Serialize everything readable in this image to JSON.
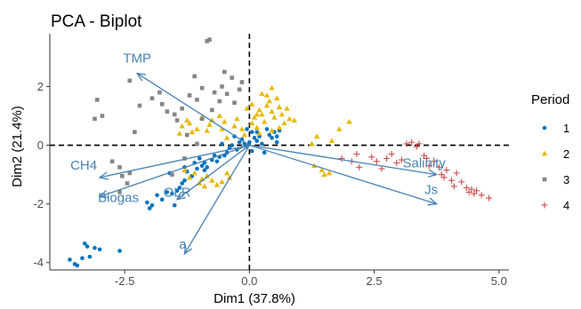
{
  "chart_data": {
    "type": "scatter",
    "title": "PCA - Biplot",
    "xlabel": "Dim1 (37.8%)",
    "ylabel": "Dim2 (21.4%)",
    "xlim": [
      -4.0,
      5.2
    ],
    "ylim": [
      -4.25,
      3.8
    ],
    "xticks": [
      -2.5,
      0.0,
      2.5,
      5.0
    ],
    "xtick_labels": [
      "-2.5",
      "0.0",
      "2.5",
      "5.0"
    ],
    "yticks": [
      -4,
      -2,
      0,
      2
    ],
    "ytick_labels": [
      "-4",
      "-2",
      "0",
      "2"
    ],
    "grid": false,
    "reference_lines": {
      "x": 0,
      "y": 0,
      "style": "dashed"
    },
    "legend": {
      "title": "Period",
      "position": "right"
    },
    "groups": [
      {
        "label": "1",
        "color": "#0072bd",
        "marker": "circle",
        "points": [
          [
            -3.6,
            -3.9
          ],
          [
            -3.5,
            -4.05
          ],
          [
            -3.45,
            -4.1
          ],
          [
            -3.35,
            -3.85
          ],
          [
            -3.25,
            -3.45
          ],
          [
            -3.1,
            -3.5
          ],
          [
            -3.2,
            -3.8
          ],
          [
            -3.0,
            -3.55
          ],
          [
            -2.6,
            -3.6
          ],
          [
            -3.3,
            -3.35
          ],
          [
            -2.05,
            -1.95
          ],
          [
            -1.95,
            -2.05
          ],
          [
            -1.85,
            -1.7
          ],
          [
            -1.75,
            -1.85
          ],
          [
            -1.65,
            -1.6
          ],
          [
            -1.55,
            -1.65
          ],
          [
            -1.45,
            -1.55
          ],
          [
            -1.4,
            -1.45
          ],
          [
            -1.35,
            -1.3
          ],
          [
            -1.3,
            -1.2
          ],
          [
            -1.25,
            -0.9
          ],
          [
            -1.15,
            -1.05
          ],
          [
            -1.05,
            -0.8
          ],
          [
            -0.95,
            -0.7
          ],
          [
            -0.9,
            -0.6
          ],
          [
            -0.85,
            -0.75
          ],
          [
            -0.75,
            -0.5
          ],
          [
            -0.65,
            -0.55
          ],
          [
            -0.6,
            -0.4
          ],
          [
            -0.5,
            -0.35
          ],
          [
            -0.45,
            -0.25
          ],
          [
            -0.4,
            -0.1
          ],
          [
            -0.35,
            0.0
          ],
          [
            -0.25,
            -0.15
          ],
          [
            -0.2,
            0.1
          ],
          [
            -0.15,
            0.2
          ],
          [
            -0.1,
            0.05
          ],
          [
            -0.05,
            -0.05
          ],
          [
            0.0,
            0.1
          ],
          [
            0.05,
            -0.2
          ],
          [
            0.1,
            0.25
          ],
          [
            0.15,
            0.15
          ],
          [
            0.2,
            0.3
          ],
          [
            0.25,
            0.05
          ],
          [
            0.3,
            -0.25
          ],
          [
            0.4,
            0.35
          ],
          [
            0.5,
            0.45
          ],
          [
            0.45,
            0.25
          ],
          [
            0.55,
            0.3
          ],
          [
            0.6,
            0.5
          ],
          [
            0.35,
            0.55
          ],
          [
            0.15,
            0.45
          ],
          [
            -0.05,
            0.55
          ],
          [
            -0.3,
            0.3
          ],
          [
            -0.55,
            0.05
          ],
          [
            -0.7,
            -0.35
          ],
          [
            -1.0,
            -0.45
          ],
          [
            -1.1,
            -0.6
          ],
          [
            -1.3,
            -0.75
          ],
          [
            -1.6,
            -0.95
          ],
          [
            -2.0,
            -2.15
          ],
          [
            -1.5,
            -2.05
          ],
          [
            -0.9,
            -0.85
          ],
          [
            0.55,
            0.1
          ],
          [
            0.05,
            0.45
          ]
        ]
      },
      {
        "label": "2",
        "color": "#e7b800",
        "marker": "triangle",
        "points": [
          [
            -1.35,
            0.65
          ],
          [
            -1.25,
            0.85
          ],
          [
            -1.2,
            0.75
          ],
          [
            -1.15,
            0.45
          ],
          [
            -1.05,
            0.55
          ],
          [
            -0.95,
            0.95
          ],
          [
            -0.85,
            0.5
          ],
          [
            -0.8,
            0.7
          ],
          [
            -0.75,
            0.85
          ],
          [
            -0.6,
            1.0
          ],
          [
            -0.55,
            0.55
          ],
          [
            -0.5,
            0.8
          ],
          [
            -0.45,
            0.25
          ],
          [
            -0.3,
            0.65
          ],
          [
            -0.25,
            0.9
          ],
          [
            -0.15,
            0.55
          ],
          [
            -0.1,
            0.35
          ],
          [
            0.05,
            0.75
          ],
          [
            0.1,
            0.95
          ],
          [
            0.15,
            0.6
          ],
          [
            0.2,
            1.2
          ],
          [
            0.25,
            1.05
          ],
          [
            0.3,
            0.8
          ],
          [
            0.35,
            1.35
          ],
          [
            0.4,
            1.5
          ],
          [
            0.45,
            1.15
          ],
          [
            0.5,
            0.95
          ],
          [
            0.55,
            1.6
          ],
          [
            0.6,
            1.3
          ],
          [
            0.65,
            1.05
          ],
          [
            0.7,
            0.75
          ],
          [
            0.75,
            1.25
          ],
          [
            0.8,
            0.9
          ],
          [
            0.25,
            1.75
          ],
          [
            0.45,
            1.95
          ],
          [
            0.35,
            1.7
          ],
          [
            -0.05,
            1.25
          ],
          [
            0.05,
            1.4
          ],
          [
            0.15,
            1.05
          ],
          [
            0.2,
            0.4
          ],
          [
            0.45,
            0.5
          ],
          [
            0.6,
            0.6
          ],
          [
            -1.3,
            -0.85
          ],
          [
            -1.1,
            -0.95
          ],
          [
            -1.0,
            -1.3
          ],
          [
            -0.95,
            -1.15
          ],
          [
            -0.85,
            -1.05
          ],
          [
            -0.75,
            -1.2
          ],
          [
            -0.65,
            -1.35
          ],
          [
            -0.55,
            -1.25
          ],
          [
            -0.45,
            -0.95
          ],
          [
            -0.4,
            -1.1
          ],
          [
            -0.9,
            -1.4
          ],
          [
            -1.2,
            -1.1
          ],
          [
            1.3,
            -0.7
          ],
          [
            1.45,
            -0.85
          ],
          [
            1.5,
            -1.0
          ],
          [
            1.6,
            -0.95
          ],
          [
            1.35,
            0.3
          ],
          [
            1.8,
            0.55
          ],
          [
            2.0,
            0.8
          ],
          [
            1.25,
            0.05
          ],
          [
            1.65,
            0.15
          ],
          [
            0.9,
            0.85
          ],
          [
            -1.4,
            0.4
          ]
        ]
      },
      {
        "label": "3",
        "color": "#868686",
        "marker": "square",
        "points": [
          [
            -3.05,
            1.55
          ],
          [
            -2.95,
            1.0
          ],
          [
            -3.1,
            0.9
          ],
          [
            -2.75,
            -0.55
          ],
          [
            -2.6,
            -0.75
          ],
          [
            -2.55,
            -1.05
          ],
          [
            -2.45,
            -1.3
          ],
          [
            -2.6,
            -1.6
          ],
          [
            -2.4,
            -0.95
          ],
          [
            -2.2,
            1.35
          ],
          [
            -2.3,
            0.45
          ],
          [
            -2.4,
            2.2
          ],
          [
            -1.95,
            1.6
          ],
          [
            -1.8,
            1.8
          ],
          [
            -1.75,
            1.4
          ],
          [
            -1.65,
            1.15
          ],
          [
            -1.5,
            1.05
          ],
          [
            -1.45,
            0.85
          ],
          [
            -1.35,
            1.25
          ],
          [
            -1.2,
            1.7
          ],
          [
            -1.1,
            2.35
          ],
          [
            -1.05,
            1.55
          ],
          [
            -0.95,
            1.95
          ],
          [
            -0.85,
            3.55
          ],
          [
            -0.8,
            3.6
          ],
          [
            -0.75,
            1.2
          ],
          [
            -0.7,
            1.8
          ],
          [
            -0.6,
            1.5
          ],
          [
            -0.55,
            2.0
          ],
          [
            -0.45,
            1.75
          ],
          [
            -0.35,
            2.3
          ],
          [
            -0.3,
            1.45
          ],
          [
            -0.2,
            1.9
          ],
          [
            -0.15,
            2.15
          ],
          [
            -0.95,
            0.9
          ],
          [
            -1.3,
            -0.45
          ],
          [
            -1.55,
            -1.0
          ],
          [
            -1.25,
            0.35
          ],
          [
            -1.05,
            0.05
          ],
          [
            -0.5,
            2.5
          ]
        ]
      },
      {
        "label": "4",
        "color": "#cc4c4c",
        "marker": "plus",
        "points": [
          [
            1.85,
            -0.45
          ],
          [
            2.05,
            -0.55
          ],
          [
            2.15,
            -0.3
          ],
          [
            2.2,
            -0.75
          ],
          [
            2.45,
            -0.4
          ],
          [
            2.55,
            -0.55
          ],
          [
            2.65,
            -0.8
          ],
          [
            2.75,
            -0.45
          ],
          [
            2.85,
            -0.3
          ],
          [
            2.95,
            -0.6
          ],
          [
            3.05,
            -0.5
          ],
          [
            3.15,
            0.05
          ],
          [
            3.25,
            0.1
          ],
          [
            3.35,
            -0.05
          ],
          [
            3.4,
            0.05
          ],
          [
            3.5,
            -0.35
          ],
          [
            3.55,
            -0.45
          ],
          [
            3.6,
            -0.7
          ],
          [
            3.7,
            -0.55
          ],
          [
            3.8,
            -0.75
          ],
          [
            3.85,
            -1.0
          ],
          [
            3.9,
            -1.1
          ],
          [
            3.95,
            -0.85
          ],
          [
            4.05,
            -1.2
          ],
          [
            4.1,
            -1.4
          ],
          [
            4.15,
            -0.95
          ],
          [
            4.25,
            -1.25
          ],
          [
            4.35,
            -1.45
          ],
          [
            4.4,
            -1.6
          ],
          [
            4.45,
            -1.5
          ],
          [
            4.5,
            -1.65
          ],
          [
            4.55,
            -1.55
          ],
          [
            4.65,
            -1.7
          ],
          [
            4.8,
            -1.8
          ]
        ]
      }
    ],
    "variables": [
      {
        "name": "TMP",
        "x": -2.25,
        "y": 2.45
      },
      {
        "name": "CH4",
        "x": -3.0,
        "y": -1.1
      },
      {
        "name": "Biogas",
        "x": -3.0,
        "y": -1.75
      },
      {
        "name": "OLR",
        "x": -1.45,
        "y": -1.85
      },
      {
        "name": "a",
        "x": -1.3,
        "y": -3.7
      },
      {
        "name": "Salinity",
        "x": 3.75,
        "y": -1.0
      },
      {
        "name": "Js",
        "x": 3.75,
        "y": -2.0
      }
    ],
    "variable_color": "#4682b4"
  }
}
